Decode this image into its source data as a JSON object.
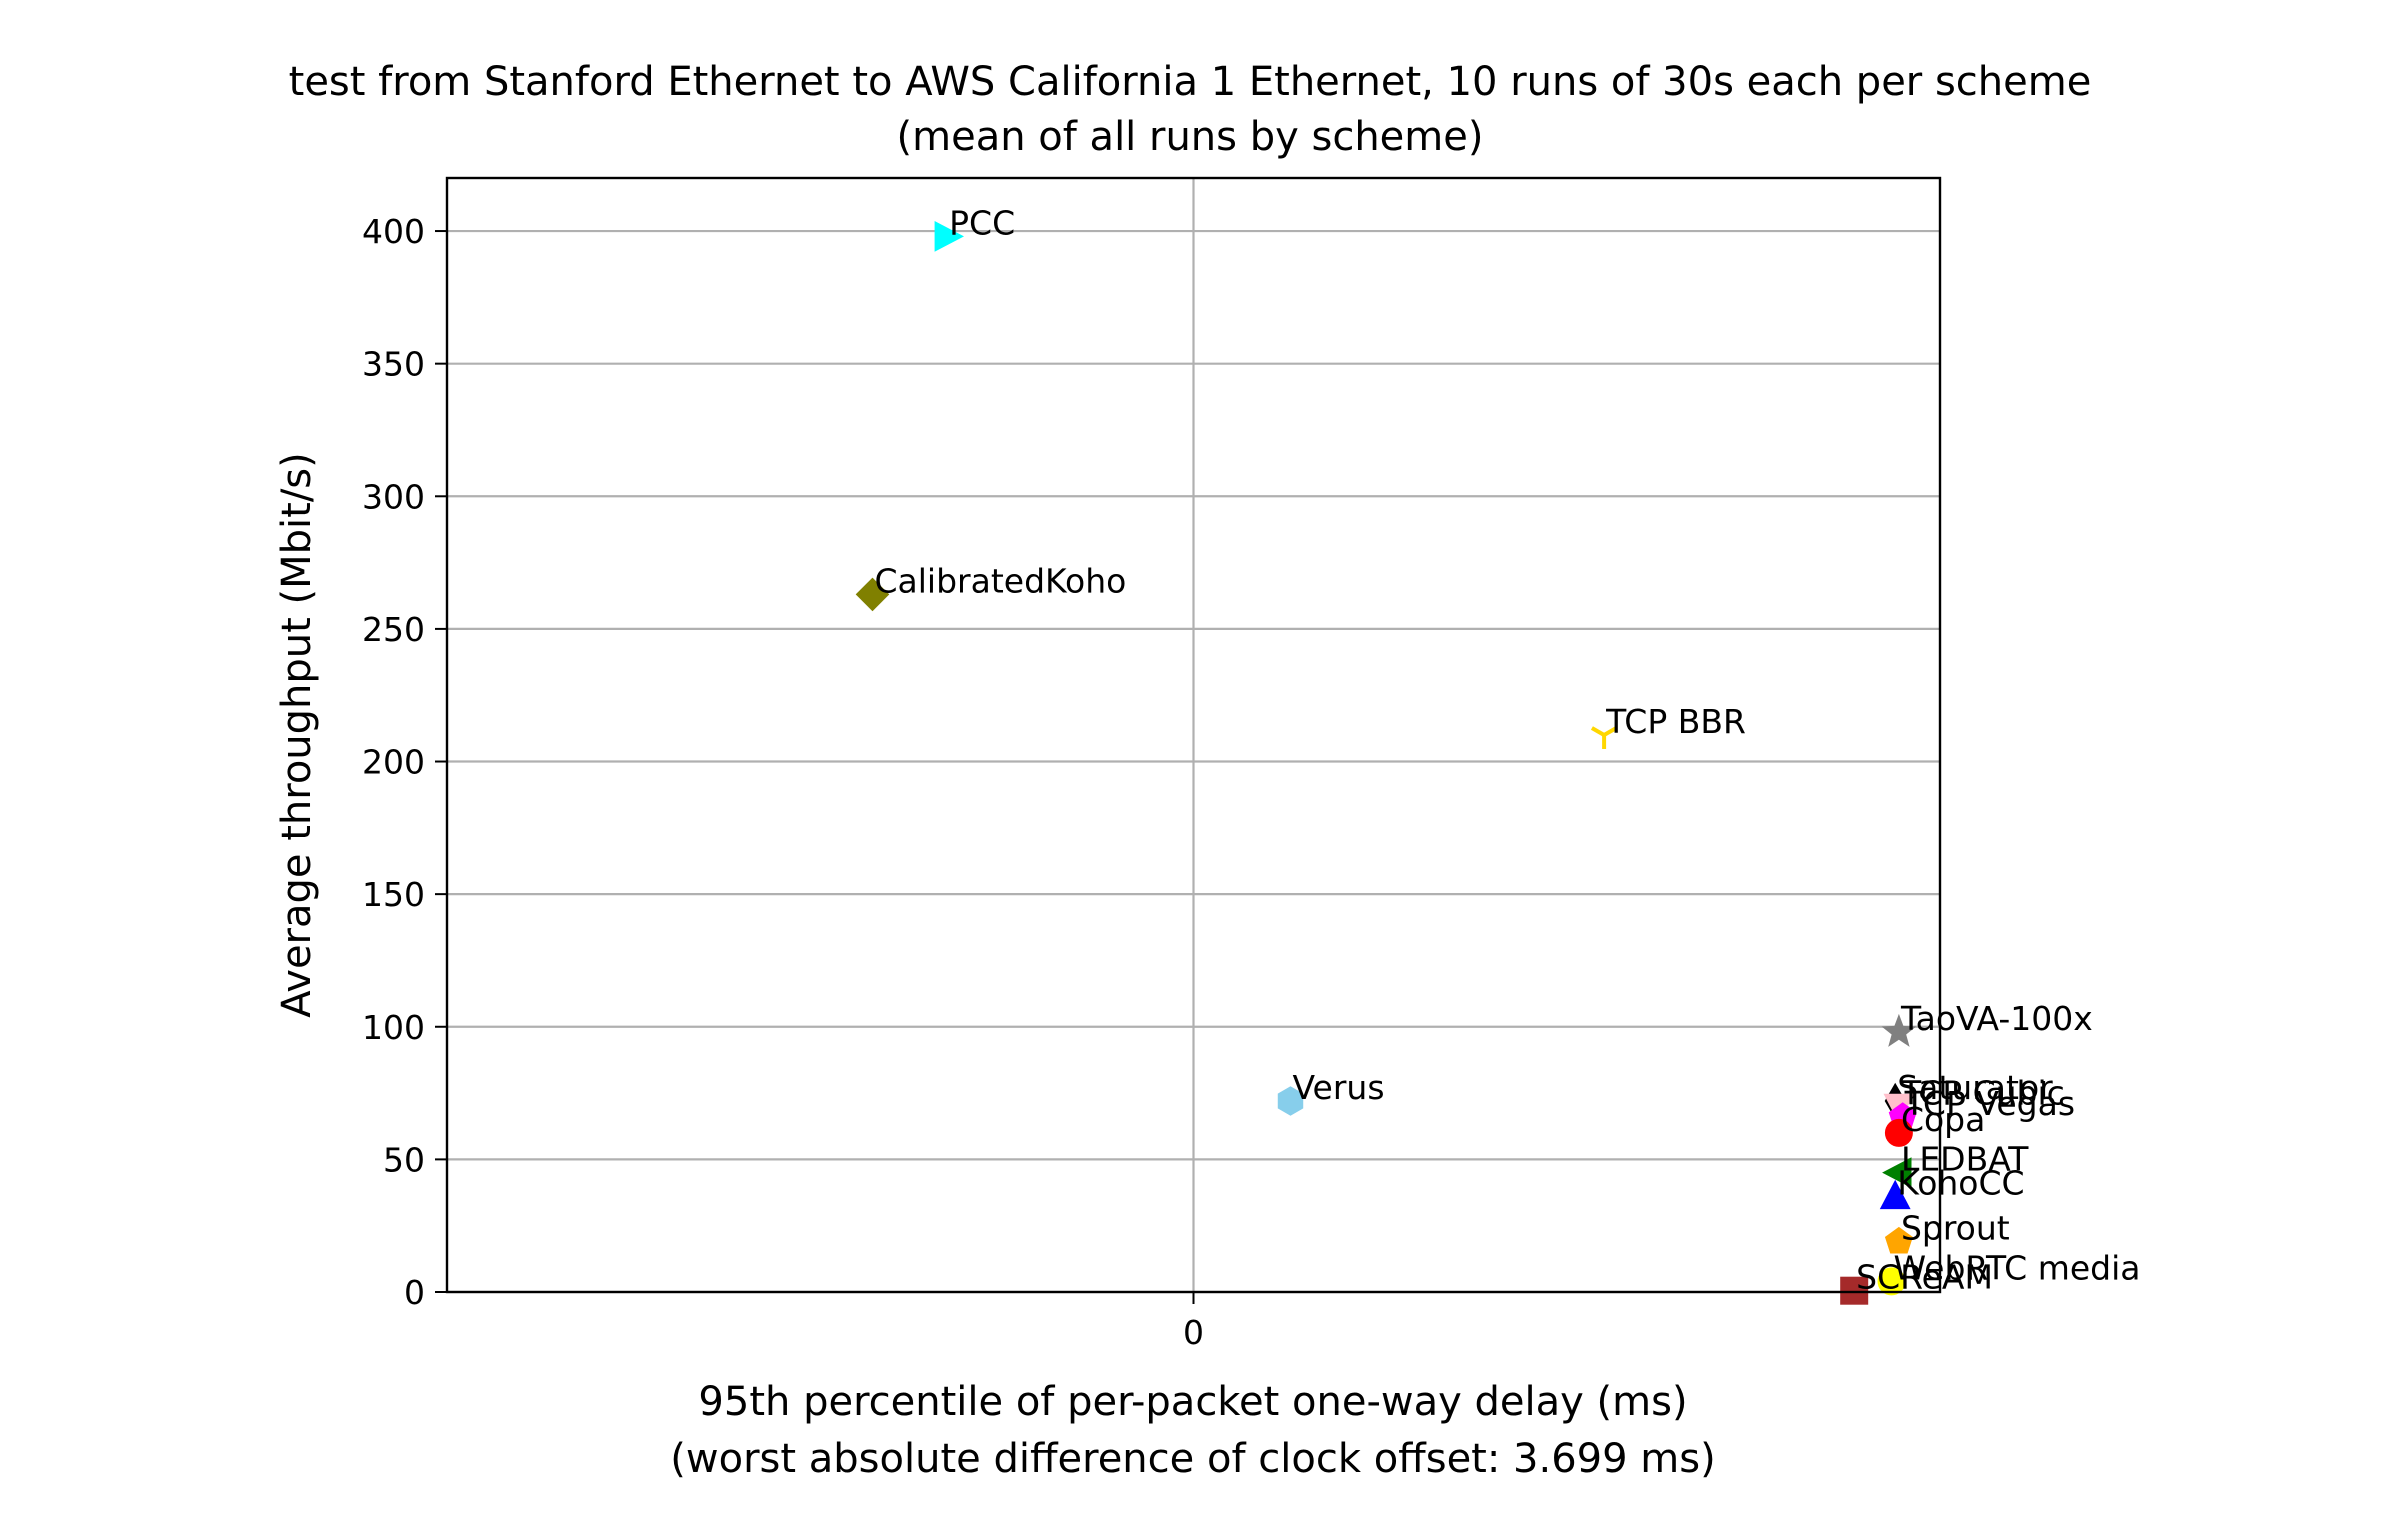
{
  "chart_data": {
    "type": "scatter",
    "title": "test from Stanford Ethernet to AWS California 1 Ethernet, 10 runs of 30s each per scheme",
    "subtitle": "(mean of all runs by scheme)",
    "xlabel": "95th percentile of per-packet one-way delay (ms)",
    "xlabel_note": "(worst absolute difference of clock offset: 3.699 ms)",
    "ylabel": "Average throughput (Mbit/s)",
    "xlim": [
      -1.0,
      1.0
    ],
    "ylim": [
      0,
      420
    ],
    "x_ticks": [
      0
    ],
    "y_ticks": [
      0,
      50,
      100,
      150,
      200,
      250,
      300,
      350,
      400
    ],
    "grid": true,
    "legend": "none",
    "points": [
      {
        "label": "PCC",
        "x": -0.33,
        "y": 398,
        "color": "#00ffff",
        "marker": "triangle-right"
      },
      {
        "label": "CalibratedKoho",
        "x": -0.43,
        "y": 263,
        "color": "#808000",
        "marker": "diamond"
      },
      {
        "label": "TCP BBR",
        "x": 0.55,
        "y": 210,
        "color": "#ffd700",
        "marker": "tri-down"
      },
      {
        "label": "Verus",
        "x": 0.13,
        "y": 72,
        "color": "#87ceeb",
        "marker": "hexagon"
      },
      {
        "label": "TaoVA-100x",
        "x": 0.945,
        "y": 98,
        "color": "#808080",
        "marker": "star"
      },
      {
        "label": "Saturator",
        "x": 0.94,
        "y": 72,
        "color": "#000000",
        "marker": "thin-diamond"
      },
      {
        "label": "TCP Cubic",
        "x": 0.945,
        "y": 70,
        "color": "#ffc0cb",
        "marker": "triangle-down"
      },
      {
        "label": "TCP Vegas",
        "x": 0.95,
        "y": 66,
        "color": "#ff00ff",
        "marker": "pentagon"
      },
      {
        "label": "Copa",
        "x": 0.945,
        "y": 60,
        "color": "#ff0000",
        "marker": "circle"
      },
      {
        "label": "LEDBAT",
        "x": 0.945,
        "y": 45,
        "color": "#008000",
        "marker": "triangle-left"
      },
      {
        "label": "KohoCC",
        "x": 0.94,
        "y": 36,
        "color": "#0000ff",
        "marker": "triangle-up"
      },
      {
        "label": "Sprout",
        "x": 0.945,
        "y": 19,
        "color": "#ffa500",
        "marker": "pentagon"
      },
      {
        "label": "WebRTC media",
        "x": 0.935,
        "y": 4,
        "color": "#ffff00",
        "marker": "circle"
      },
      {
        "label": "SCReAM",
        "x": 0.885,
        "y": 0.5,
        "color": "#a52a2a",
        "marker": "square"
      }
    ]
  }
}
